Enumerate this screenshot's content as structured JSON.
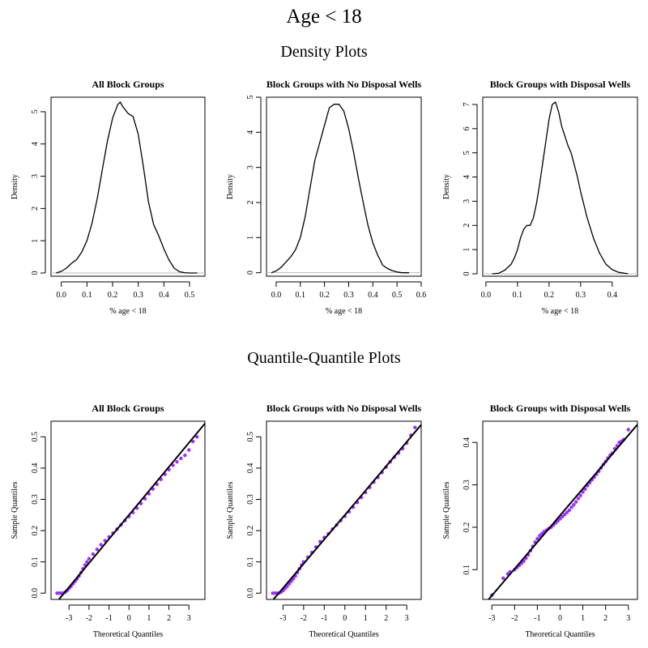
{
  "page": {
    "title": "Age < 18",
    "density_section_title": "Density Plots",
    "qq_section_title": "Quantile-Quantile Plots"
  },
  "colors": {
    "line": "#000000",
    "baseline": "#bebebe",
    "qq_points": "#9b30ff"
  },
  "chart_data": [
    {
      "type": "line",
      "subtype": "density",
      "title": "All Block Groups",
      "xlabel": "% age < 18",
      "ylabel": "Density",
      "xlim": [
        -0.04,
        0.56
      ],
      "ylim": [
        -0.1,
        5.45
      ],
      "xticks": [
        0.0,
        0.1,
        0.2,
        0.3,
        0.4,
        0.5
      ],
      "xtick_labels": [
        "0.0",
        "0.1",
        "0.2",
        "0.3",
        "0.4",
        "0.5"
      ],
      "yticks": [
        0,
        1,
        2,
        3,
        4,
        5
      ],
      "ytick_labels": [
        "0",
        "1",
        "2",
        "3",
        "4",
        "5"
      ],
      "baseline": 0,
      "x": [
        -0.02,
        0.0,
        0.02,
        0.04,
        0.06,
        0.08,
        0.1,
        0.12,
        0.14,
        0.16,
        0.18,
        0.2,
        0.22,
        0.23,
        0.24,
        0.26,
        0.28,
        0.3,
        0.32,
        0.34,
        0.36,
        0.38,
        0.4,
        0.42,
        0.44,
        0.46,
        0.48,
        0.5,
        0.53
      ],
      "y": [
        0.0,
        0.05,
        0.15,
        0.3,
        0.42,
        0.65,
        1.0,
        1.55,
        2.3,
        3.2,
        4.1,
        4.8,
        5.22,
        5.3,
        5.15,
        4.95,
        4.85,
        4.3,
        3.3,
        2.2,
        1.5,
        1.15,
        0.75,
        0.4,
        0.15,
        0.04,
        0.01,
        0.0,
        0.0
      ]
    },
    {
      "type": "line",
      "subtype": "density",
      "title": "Block Groups with No Disposal Wells",
      "xlabel": "% age < 18",
      "ylabel": "Density",
      "xlim": [
        -0.04,
        0.6
      ],
      "ylim": [
        -0.1,
        5.0
      ],
      "xticks": [
        0.0,
        0.1,
        0.2,
        0.3,
        0.4,
        0.5,
        0.6
      ],
      "xtick_labels": [
        "0.0",
        "0.1",
        "0.2",
        "0.3",
        "0.4",
        "0.5",
        "0.6"
      ],
      "yticks": [
        0,
        1,
        2,
        3,
        4,
        5
      ],
      "ytick_labels": [
        "0",
        "1",
        "2",
        "3",
        "4",
        "5"
      ],
      "baseline": 0,
      "x": [
        -0.02,
        0.0,
        0.02,
        0.04,
        0.06,
        0.08,
        0.1,
        0.12,
        0.14,
        0.16,
        0.18,
        0.2,
        0.22,
        0.24,
        0.26,
        0.28,
        0.3,
        0.32,
        0.34,
        0.36,
        0.38,
        0.4,
        0.42,
        0.44,
        0.46,
        0.48,
        0.5,
        0.52,
        0.55
      ],
      "y": [
        0.0,
        0.05,
        0.15,
        0.3,
        0.45,
        0.65,
        1.0,
        1.6,
        2.4,
        3.2,
        3.7,
        4.2,
        4.7,
        4.8,
        4.8,
        4.6,
        4.1,
        3.45,
        2.7,
        2.0,
        1.35,
        0.85,
        0.5,
        0.22,
        0.12,
        0.06,
        0.02,
        0.0,
        0.0
      ]
    },
    {
      "type": "line",
      "subtype": "density",
      "title": "Block Groups with Disposal Wells",
      "xlabel": "% age < 18",
      "ylabel": "Density",
      "xlim": [
        -0.01,
        0.48
      ],
      "ylim": [
        -0.1,
        7.3
      ],
      "xticks": [
        0.0,
        0.1,
        0.2,
        0.3,
        0.4
      ],
      "xtick_labels": [
        "0.0",
        "0.1",
        "0.2",
        "0.3",
        "0.4"
      ],
      "yticks": [
        0,
        1,
        2,
        3,
        4,
        5,
        6,
        7
      ],
      "ytick_labels": [
        "0",
        "1",
        "2",
        "3",
        "4",
        "5",
        "6",
        "7"
      ],
      "baseline": 0,
      "x": [
        0.02,
        0.04,
        0.06,
        0.08,
        0.09,
        0.1,
        0.11,
        0.12,
        0.13,
        0.14,
        0.15,
        0.16,
        0.17,
        0.18,
        0.19,
        0.2,
        0.21,
        0.22,
        0.23,
        0.24,
        0.25,
        0.26,
        0.27,
        0.28,
        0.29,
        0.3,
        0.32,
        0.34,
        0.36,
        0.38,
        0.4,
        0.42,
        0.44,
        0.45
      ],
      "y": [
        0.0,
        0.02,
        0.15,
        0.4,
        0.65,
        1.0,
        1.5,
        1.85,
        2.0,
        2.0,
        2.3,
        2.9,
        3.7,
        4.6,
        5.5,
        6.4,
        7.0,
        7.1,
        6.7,
        6.1,
        5.7,
        5.3,
        5.0,
        4.5,
        4.0,
        3.4,
        2.35,
        1.5,
        0.85,
        0.4,
        0.17,
        0.06,
        0.02,
        0.0
      ]
    },
    {
      "type": "scatter",
      "subtype": "qq",
      "title": "All Block Groups",
      "xlabel": "Theoretical Quantiles",
      "ylabel": "Sample Quantiles",
      "xlim": [
        -3.9,
        3.8
      ],
      "ylim": [
        -0.02,
        0.55
      ],
      "xticks": [
        -3,
        -2,
        -1,
        0,
        1,
        2,
        3
      ],
      "xtick_labels": [
        "-3",
        "-2",
        "-1",
        "0",
        "1",
        "2",
        "3"
      ],
      "yticks": [
        0.0,
        0.1,
        0.2,
        0.3,
        0.4,
        0.5
      ],
      "ytick_labels": [
        "0.0",
        "0.1",
        "0.2",
        "0.3",
        "0.4",
        "0.5"
      ],
      "reference_line": {
        "intercept": 0.25,
        "slope": 0.077
      },
      "x": [
        -3.6,
        -3.5,
        -3.4,
        -3.3,
        -3.2,
        -3.1,
        -3.0,
        -2.9,
        -2.8,
        -2.7,
        -2.6,
        -2.5,
        -2.4,
        -2.3,
        -2.2,
        -2.1,
        -2.0,
        -1.8,
        -1.6,
        -1.4,
        -1.2,
        -1.0,
        -0.8,
        -0.6,
        -0.4,
        -0.2,
        0.0,
        0.2,
        0.4,
        0.6,
        0.8,
        1.0,
        1.2,
        1.4,
        1.6,
        1.8,
        2.0,
        2.2,
        2.4,
        2.6,
        2.8,
        3.0,
        3.2,
        3.4
      ],
      "y": [
        0.0,
        0.0,
        0.0,
        0.0,
        0.003,
        0.008,
        0.015,
        0.022,
        0.03,
        0.038,
        0.046,
        0.055,
        0.066,
        0.078,
        0.09,
        0.1,
        0.11,
        0.125,
        0.14,
        0.155,
        0.168,
        0.18,
        0.192,
        0.205,
        0.218,
        0.232,
        0.245,
        0.258,
        0.272,
        0.287,
        0.302,
        0.318,
        0.333,
        0.348,
        0.364,
        0.38,
        0.395,
        0.409,
        0.42,
        0.431,
        0.441,
        0.458,
        0.485,
        0.5
      ]
    },
    {
      "type": "scatter",
      "subtype": "qq",
      "title": "Block Groups with No Disposal Wells",
      "xlabel": "Theoretical Quantiles",
      "ylabel": "Sample Quantiles",
      "xlim": [
        -3.8,
        3.7
      ],
      "ylim": [
        -0.02,
        0.55
      ],
      "xticks": [
        -3,
        -2,
        -1,
        0,
        1,
        2,
        3
      ],
      "xtick_labels": [
        "-3",
        "-2",
        "-1",
        "0",
        "1",
        "2",
        "3"
      ],
      "yticks": [
        0.0,
        0.1,
        0.2,
        0.3,
        0.4,
        0.5
      ],
      "ytick_labels": [
        "0.0",
        "0.1",
        "0.2",
        "0.3",
        "0.4",
        "0.5"
      ],
      "reference_line": {
        "intercept": 0.25,
        "slope": 0.078
      },
      "x": [
        -3.5,
        -3.4,
        -3.3,
        -3.2,
        -3.1,
        -3.0,
        -2.9,
        -2.8,
        -2.7,
        -2.6,
        -2.5,
        -2.4,
        -2.3,
        -2.2,
        -2.1,
        -2.0,
        -1.8,
        -1.6,
        -1.4,
        -1.2,
        -1.0,
        -0.8,
        -0.6,
        -0.4,
        -0.2,
        0.0,
        0.2,
        0.4,
        0.6,
        0.8,
        1.0,
        1.2,
        1.4,
        1.6,
        1.8,
        2.0,
        2.2,
        2.4,
        2.6,
        2.8,
        3.0,
        3.2,
        3.4
      ],
      "y": [
        0.0,
        0.0,
        0.0,
        0.0,
        0.003,
        0.008,
        0.015,
        0.022,
        0.03,
        0.038,
        0.046,
        0.055,
        0.066,
        0.078,
        0.09,
        0.1,
        0.115,
        0.13,
        0.148,
        0.165,
        0.178,
        0.19,
        0.205,
        0.218,
        0.232,
        0.246,
        0.26,
        0.275,
        0.29,
        0.306,
        0.322,
        0.338,
        0.355,
        0.37,
        0.386,
        0.403,
        0.42,
        0.435,
        0.448,
        0.462,
        0.48,
        0.505,
        0.53
      ]
    },
    {
      "type": "scatter",
      "subtype": "qq",
      "title": "Block Groups with Disposal Wells",
      "xlabel": "Theoretical Quantiles",
      "ylabel": "Sample Quantiles",
      "xlim": [
        -3.4,
        3.4
      ],
      "ylim": [
        0.03,
        0.45
      ],
      "xticks": [
        -3,
        -2,
        -1,
        0,
        1,
        2,
        3
      ],
      "xtick_labels": [
        "-3",
        "-2",
        "-1",
        "0",
        "1",
        "2",
        "3"
      ],
      "yticks": [
        0.1,
        0.2,
        0.3,
        0.4
      ],
      "ytick_labels": [
        "0.1",
        "0.2",
        "0.3",
        "0.4"
      ],
      "reference_line": {
        "intercept": 0.228,
        "slope": 0.063
      },
      "x": [
        -3.0,
        -2.5,
        -2.3,
        -2.2,
        -2.0,
        -1.9,
        -1.8,
        -1.7,
        -1.6,
        -1.5,
        -1.4,
        -1.3,
        -1.2,
        -1.1,
        -1.0,
        -0.9,
        -0.8,
        -0.7,
        -0.6,
        -0.5,
        -0.4,
        -0.3,
        -0.2,
        -0.1,
        0.0,
        0.1,
        0.2,
        0.3,
        0.4,
        0.5,
        0.6,
        0.7,
        0.8,
        0.9,
        1.0,
        1.1,
        1.2,
        1.3,
        1.4,
        1.5,
        1.6,
        1.7,
        1.8,
        1.9,
        2.0,
        2.1,
        2.2,
        2.3,
        2.4,
        2.5,
        2.6,
        2.7,
        2.8,
        3.0
      ],
      "y": [
        0.04,
        0.08,
        0.09,
        0.095,
        0.1,
        0.105,
        0.11,
        0.115,
        0.12,
        0.127,
        0.135,
        0.145,
        0.155,
        0.165,
        0.173,
        0.18,
        0.185,
        0.19,
        0.193,
        0.197,
        0.2,
        0.205,
        0.21,
        0.215,
        0.22,
        0.225,
        0.23,
        0.235,
        0.24,
        0.247,
        0.253,
        0.26,
        0.268,
        0.275,
        0.283,
        0.29,
        0.298,
        0.305,
        0.312,
        0.318,
        0.325,
        0.332,
        0.34,
        0.348,
        0.355,
        0.363,
        0.37,
        0.375,
        0.385,
        0.392,
        0.4,
        0.403,
        0.407,
        0.43
      ]
    }
  ]
}
